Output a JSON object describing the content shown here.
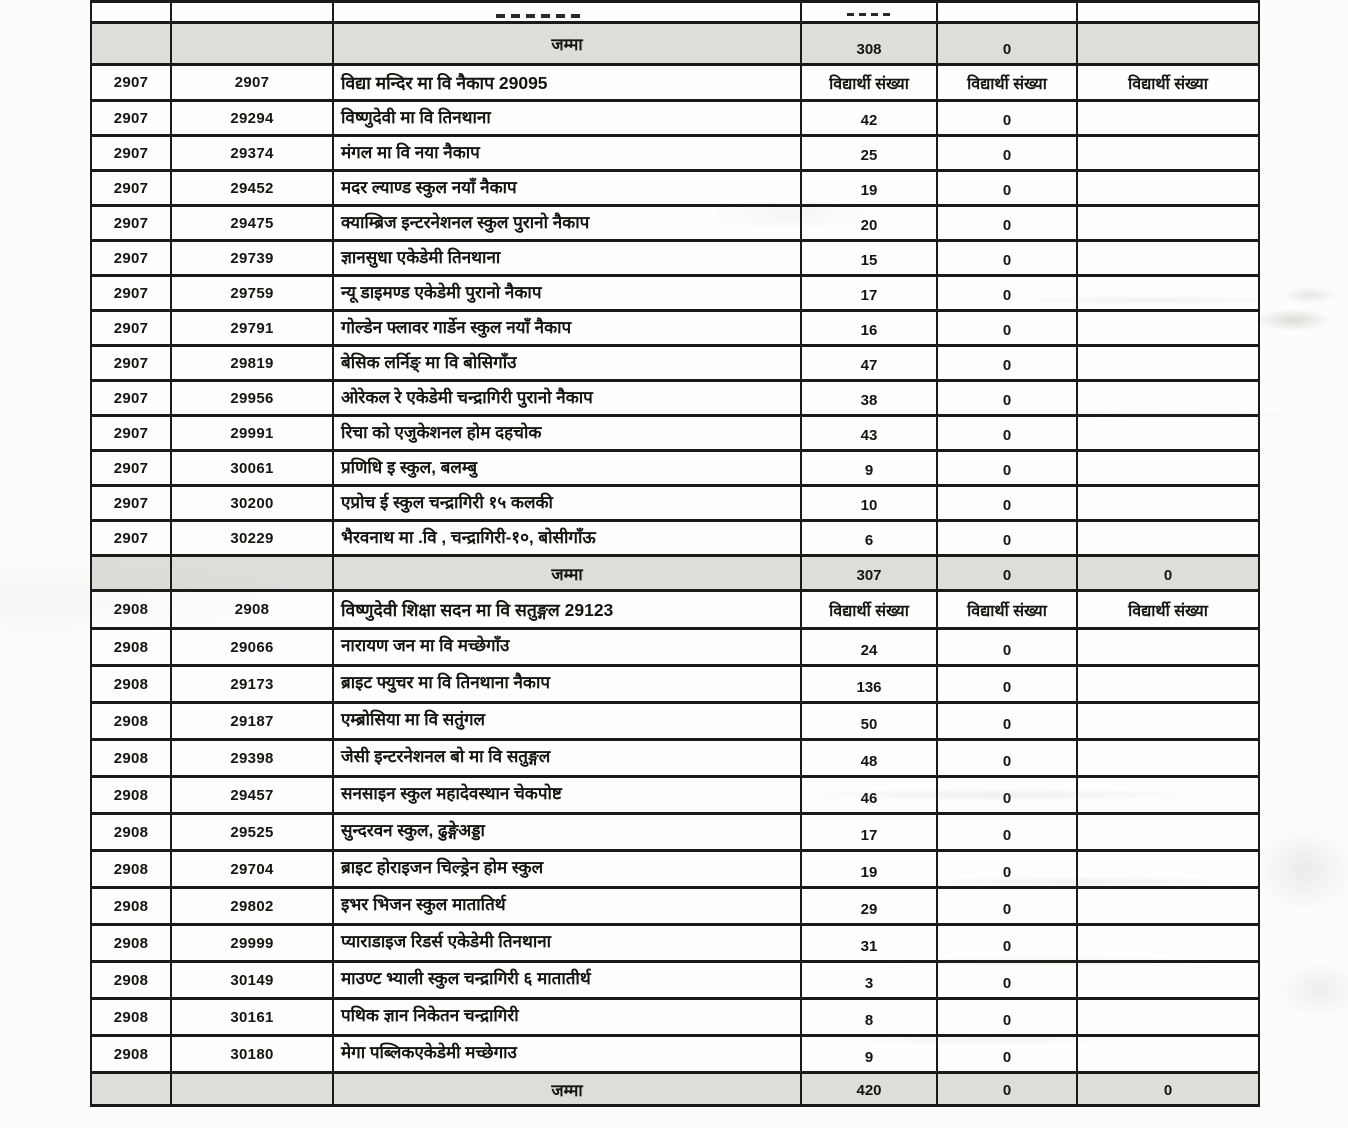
{
  "page": {
    "background": "#fcfcfa",
    "description": "scanned enrollment table"
  },
  "labels": {
    "total_label": "जम्मा",
    "student_count_header": "विद्यार्थी संख्या"
  },
  "colors": {
    "border": "#1c1a18",
    "total_row_shading": "#dfddda",
    "text": "#171512"
  },
  "table": {
    "rows": [
      {
        "type": "partial",
        "code1": "",
        "code2": "",
        "name": "",
        "v1": "",
        "v2": "",
        "v3": ""
      },
      {
        "type": "total",
        "code1": "",
        "code2": "",
        "name": "जम्मा",
        "v1": "308",
        "v2": "0",
        "v3": ""
      },
      {
        "type": "header",
        "code1": "2907",
        "code2": "2907",
        "name": "विद्या मन्दिर मा वि नैकाप  29095",
        "v1": "विद्यार्थी संख्या",
        "v2": "विद्यार्थी संख्या",
        "v3": "विद्यार्थी संख्या"
      },
      {
        "type": "data",
        "code1": "2907",
        "code2": "29294",
        "name": "विष्णुदेवी मा वि तिनथाना",
        "v1": "42",
        "v2": "0",
        "v3": ""
      },
      {
        "type": "data",
        "code1": "2907",
        "code2": "29374",
        "name": "मंगल मा वि नया नैकाप",
        "v1": "25",
        "v2": "0",
        "v3": ""
      },
      {
        "type": "data",
        "code1": "2907",
        "code2": "29452",
        "name": "मदर ल्याण्ड स्कुल नयाँ नैकाप",
        "v1": "19",
        "v2": "0",
        "v3": ""
      },
      {
        "type": "data",
        "code1": "2907",
        "code2": "29475",
        "name": "क्याम्ब्रिज इन्टरनेशनल स्कुल पुरानो नैकाप",
        "v1": "20",
        "v2": "0",
        "v3": ""
      },
      {
        "type": "data",
        "code1": "2907",
        "code2": "29739",
        "name": "ज्ञानसुधा एकेडेमी तिनथाना",
        "v1": "15",
        "v2": "0",
        "v3": ""
      },
      {
        "type": "data",
        "code1": "2907",
        "code2": "29759",
        "name": "न्यू डाइमण्ड एकेडेमी पुरानो नैकाप",
        "v1": "17",
        "v2": "0",
        "v3": ""
      },
      {
        "type": "data",
        "code1": "2907",
        "code2": "29791",
        "name": "गोल्डेन फ्लावर गार्डेन स्कुल नयाँ नैकाप",
        "v1": "16",
        "v2": "0",
        "v3": ""
      },
      {
        "type": "data",
        "code1": "2907",
        "code2": "29819",
        "name": "बेसिक लर्निङ् मा वि बोसिगाँउ",
        "v1": "47",
        "v2": "0",
        "v3": ""
      },
      {
        "type": "data",
        "code1": "2907",
        "code2": "29956",
        "name": "ओरेकल रे एकेडेमी चन्द्रागिरी पुरानो नैकाप",
        "v1": "38",
        "v2": "0",
        "v3": ""
      },
      {
        "type": "data",
        "code1": "2907",
        "code2": "29991",
        "name": "रिचा को एजुकेशनल होम दहचोक",
        "v1": "43",
        "v2": "0",
        "v3": ""
      },
      {
        "type": "data",
        "code1": "2907",
        "code2": "30061",
        "name": "प्रणिधि इ स्कुल, बलम्बु",
        "v1": "9",
        "v2": "0",
        "v3": ""
      },
      {
        "type": "data",
        "code1": "2907",
        "code2": "30200",
        "name": "एप्रोच ई स्कुल चन्द्रागिरी १५ कलकी",
        "v1": "10",
        "v2": "0",
        "v3": ""
      },
      {
        "type": "data",
        "code1": "2907",
        "code2": "30229",
        "name": "भैरवनाथ मा .वि , चन्द्रागिरी-१०, बोसीगाँऊ",
        "v1": "6",
        "v2": "0",
        "v3": ""
      },
      {
        "type": "total",
        "code1": "",
        "code2": "",
        "name": "जम्मा",
        "v1": "307",
        "v2": "0",
        "v3": "0"
      },
      {
        "type": "header",
        "code1": "2908",
        "code2": "2908",
        "name": "विष्णुदेवी शिक्षा सदन मा वि सतुङ्गल 29123",
        "v1": "विद्यार्थी संख्या",
        "v2": "विद्यार्थी संख्या",
        "v3": "विद्यार्थी संख्या"
      },
      {
        "type": "data",
        "code1": "2908",
        "code2": "29066",
        "name": "नारायण जन मा वि मच्छेगाँउ",
        "v1": "24",
        "v2": "0",
        "v3": ""
      },
      {
        "type": "data",
        "code1": "2908",
        "code2": "29173",
        "name": "ब्राइट फ्युचर मा वि तिनथाना नैकाप",
        "v1": "136",
        "v2": "0",
        "v3": ""
      },
      {
        "type": "data",
        "code1": "2908",
        "code2": "29187",
        "name": "एम्ब्रोसिया मा वि सतुंगल",
        "v1": "50",
        "v2": "0",
        "v3": ""
      },
      {
        "type": "data",
        "code1": "2908",
        "code2": "29398",
        "name": "जेसी इन्टरनेशनल बो मा वि सतुङ्गल",
        "v1": "48",
        "v2": "0",
        "v3": ""
      },
      {
        "type": "data",
        "code1": "2908",
        "code2": "29457",
        "name": "सनसाइन स्कुल महादेवस्थान चेकपोष्ट",
        "v1": "46",
        "v2": "0",
        "v3": ""
      },
      {
        "type": "data",
        "code1": "2908",
        "code2": "29525",
        "name": "सुन्दरवन स्कुल, ढुङ्गेअड्डा",
        "v1": "17",
        "v2": "0",
        "v3": ""
      },
      {
        "type": "data",
        "code1": "2908",
        "code2": "29704",
        "name": "ब्राइट होराइजन चिल्ड्रेन होम स्कुल",
        "v1": "19",
        "v2": "0",
        "v3": ""
      },
      {
        "type": "data",
        "code1": "2908",
        "code2": "29802",
        "name": "इभर भिजन स्कुल मातातिर्थ",
        "v1": "29",
        "v2": "0",
        "v3": ""
      },
      {
        "type": "data",
        "code1": "2908",
        "code2": "29999",
        "name": "प्याराडाइज रिडर्स एकेडेमी तिनथाना",
        "v1": "31",
        "v2": "0",
        "v3": ""
      },
      {
        "type": "data",
        "code1": "2908",
        "code2": "30149",
        "name": "माउण्ट भ्याली स्कुल चन्द्रागिरी  ६ मातातीर्थ",
        "v1": "3",
        "v2": "0",
        "v3": ""
      },
      {
        "type": "data",
        "code1": "2908",
        "code2": "30161",
        "name": "पथिक ज्ञान  निकेतन चन्द्रागिरी",
        "v1": "8",
        "v2": "0",
        "v3": ""
      },
      {
        "type": "data",
        "code1": "2908",
        "code2": "30180",
        "name": "मेगा पब्लिकएकेडेमी मच्छेगाउ",
        "v1": "9",
        "v2": "0",
        "v3": ""
      },
      {
        "type": "total",
        "code1": "",
        "code2": "",
        "name": "जम्मा",
        "v1": "420",
        "v2": "0",
        "v3": "0"
      }
    ]
  }
}
